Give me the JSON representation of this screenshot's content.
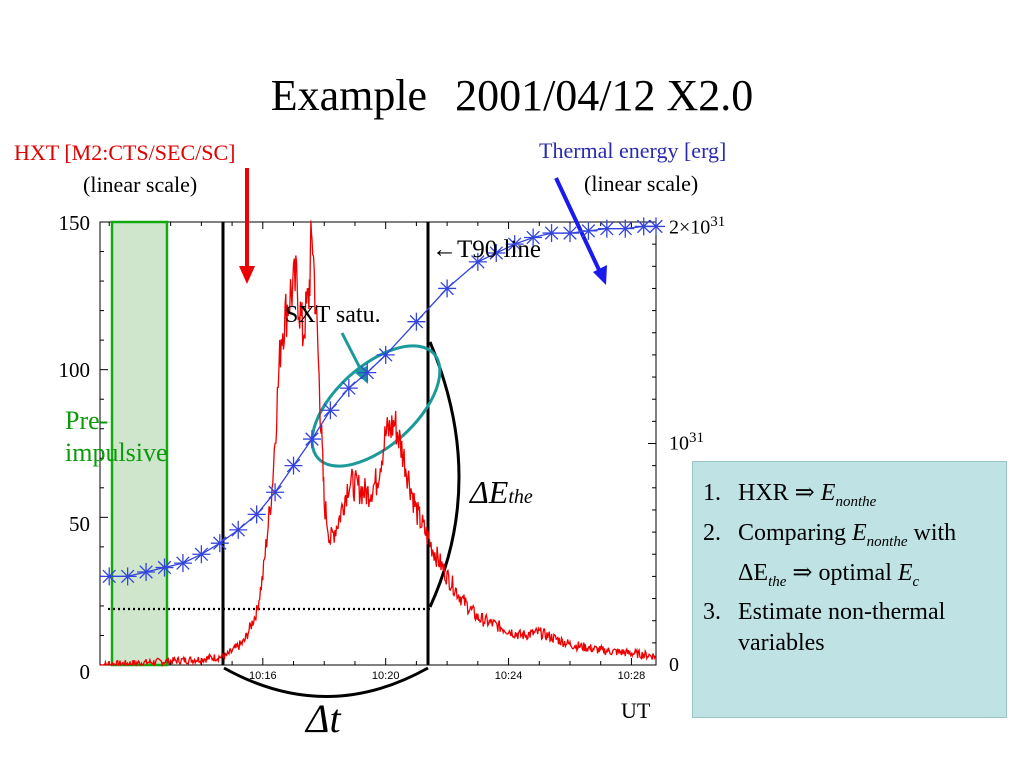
{
  "title": {
    "word": "Example",
    "event": "2001/04/12 X2.0"
  },
  "hxt": {
    "label": "HXT [M2:CTS/SEC/SC]",
    "scale": "(linear scale)"
  },
  "thermal": {
    "label": "Thermal energy [erg]",
    "scale": "(linear scale)"
  },
  "left_axis": {
    "ticks": [
      "150",
      "100",
      "50",
      "0"
    ]
  },
  "right_axis": {
    "top_base": "2",
    "top_times": "×",
    "top_mant": "10",
    "top_exp": "31",
    "mid_mant": "10",
    "mid_exp": "31",
    "zero": "0"
  },
  "annotations": {
    "t90": "←T90 line",
    "sxt": "SXT satu.",
    "pre": [
      "Pre-",
      "impulsive"
    ],
    "delta_e": "ΔE",
    "delta_e_sub": "the",
    "delta_t": "Δt",
    "ut": "UT"
  },
  "info": [
    {
      "num": "1.",
      "a": "HXR ⇒ ",
      "b": "E",
      "c": "nonthe",
      "d": ""
    },
    {
      "num": "2.",
      "a": "Comparing ",
      "b": "E",
      "c": "nonthe",
      "d": " with ΔE",
      "e": "the",
      "f": " ⇒ optimal ",
      "g": "E",
      "h": "c"
    },
    {
      "num": "3.",
      "a": "Estimate non-thermal variables"
    }
  ],
  "colors": {
    "hxt": "#ee0000",
    "thermal": "#3344dd",
    "arrow_red": "#ee0000",
    "arrow_blue": "#1a1aee",
    "teal": "#1a9a9a",
    "pre_band": "#cfe6cc",
    "pre_border": "#11aa11"
  },
  "chart_data": {
    "type": "line",
    "x_label": "UT",
    "x_ticks": [
      "10:16",
      "10:20",
      "10:24",
      "10:28"
    ],
    "x_range_minutes": [
      10.7,
      28.8
    ],
    "left_ylim": [
      0,
      150
    ],
    "right_ylim_1e31": [
      0,
      2
    ],
    "grid": false,
    "series": [
      {
        "name": "HXT [M2:CTS/SEC/SC]",
        "axis": "left",
        "x": [
          10.7,
          12.5,
          14.0,
          14.8,
          15.4,
          15.8,
          16.0,
          16.3,
          16.6,
          16.9,
          17.1,
          17.3,
          17.5,
          17.6,
          17.8,
          17.9,
          18.0,
          18.2,
          18.5,
          18.8,
          19.1,
          19.4,
          19.7,
          20.0,
          20.3,
          20.6,
          21.0,
          21.5,
          22.0,
          22.5,
          23.0,
          23.7,
          24.4,
          25.0,
          26.0,
          27.0,
          28.0,
          28.8
        ],
        "y": [
          0,
          1,
          2,
          3,
          8,
          18,
          30,
          60,
          112,
          126,
          130,
          112,
          125,
          148,
          105,
          80,
          55,
          42,
          50,
          62,
          60,
          58,
          62,
          78,
          82,
          70,
          52,
          40,
          30,
          22,
          16,
          13,
          10,
          11,
          7,
          5,
          4,
          3
        ]
      },
      {
        "name": "Thermal energy [erg]",
        "axis": "right",
        "x": [
          11.0,
          11.6,
          12.2,
          12.8,
          13.4,
          14.0,
          14.6,
          15.2,
          15.8,
          16.4,
          17.0,
          17.6,
          18.2,
          18.8,
          19.4,
          20.0,
          21.0,
          22.0,
          23.0,
          23.6,
          24.2,
          24.8,
          25.4,
          26.0,
          26.6,
          27.2,
          27.8,
          28.4,
          28.8
        ],
        "y": [
          0.4,
          0.4,
          0.42,
          0.44,
          0.46,
          0.5,
          0.55,
          0.61,
          0.68,
          0.78,
          0.9,
          1.02,
          1.15,
          1.25,
          1.32,
          1.4,
          1.55,
          1.7,
          1.82,
          1.86,
          1.9,
          1.93,
          1.95,
          1.95,
          1.96,
          1.97,
          1.97,
          1.98,
          1.98
        ]
      }
    ]
  }
}
